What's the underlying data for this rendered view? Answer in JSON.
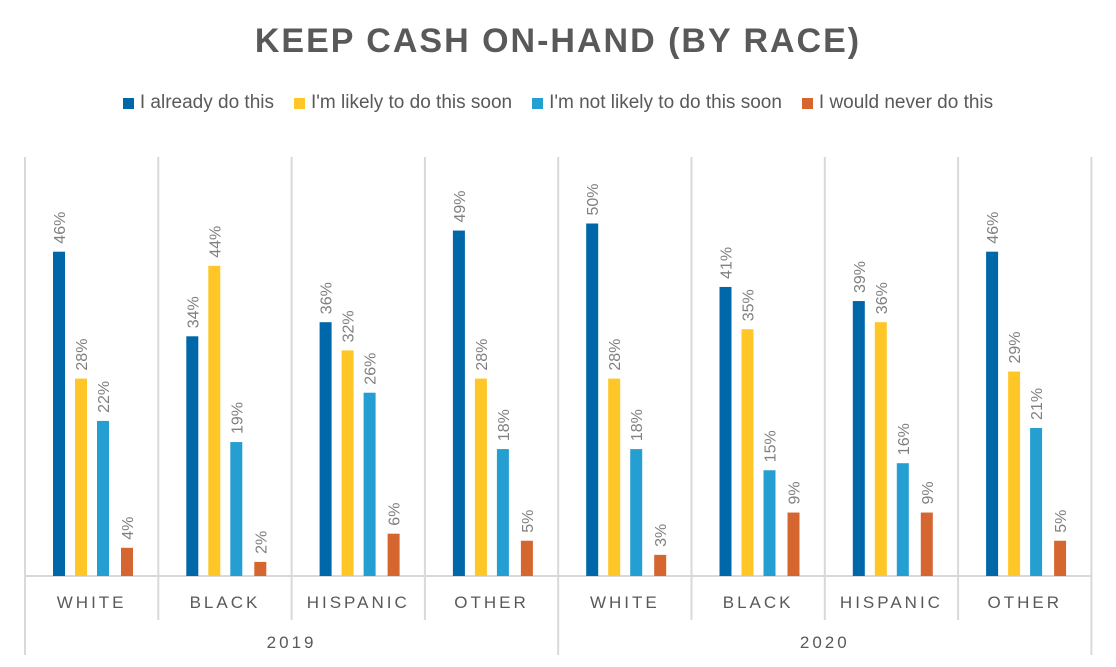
{
  "chart_data": {
    "type": "bar",
    "title": "KEEP CASH ON-HAND (BY RACE)",
    "groups": [
      "2019",
      "2020"
    ],
    "categories": [
      "WHITE",
      "BLACK",
      "HISPANIC",
      "OTHER"
    ],
    "series": [
      {
        "name": "I already do this",
        "color": "#0067A8",
        "values": [
          [
            46,
            34,
            36,
            49
          ],
          [
            50,
            41,
            39,
            46
          ]
        ]
      },
      {
        "name": "I'm likely to do this soon",
        "color": "#FFC627",
        "values": [
          [
            28,
            44,
            32,
            28
          ],
          [
            28,
            35,
            36,
            29
          ]
        ]
      },
      {
        "name": "I'm not likely to do this soon",
        "color": "#259FD2",
        "values": [
          [
            22,
            19,
            26,
            18
          ],
          [
            18,
            15,
            16,
            21
          ]
        ]
      },
      {
        "name": "I would never do this",
        "color": "#D66630",
        "values": [
          [
            4,
            2,
            6,
            5
          ],
          [
            3,
            9,
            9,
            5
          ]
        ]
      }
    ],
    "value_suffix": "%",
    "legend_position": "top",
    "grid": false
  }
}
